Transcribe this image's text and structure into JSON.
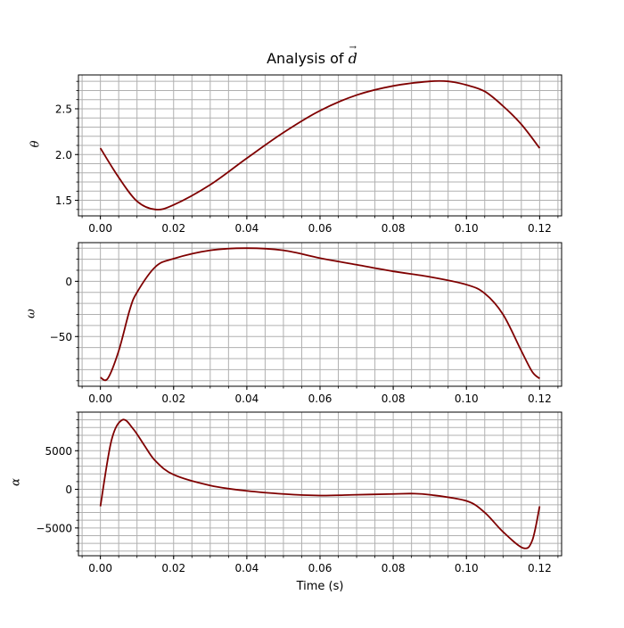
{
  "title": "Analysis of",
  "title_vector": "d",
  "xlabel": "Time (s)",
  "colors": {
    "line": "#7f0000",
    "grid": "#b0b0b0",
    "axes": "#000000"
  },
  "chart_data": [
    {
      "type": "line",
      "title": "Analysis of \\vec{d}",
      "xlabel": "",
      "ylabel": "θ",
      "xlim": [
        -0.006,
        0.126
      ],
      "ylim": [
        1.33,
        2.87
      ],
      "grid": true,
      "minor_grid": true,
      "xticks": [
        0.0,
        0.02,
        0.04,
        0.06,
        0.08,
        0.1,
        0.12
      ],
      "xtick_labels": [
        "0.00",
        "0.02",
        "0.04",
        "0.06",
        "0.08",
        "0.10",
        "0.12"
      ],
      "yticks": [
        1.5,
        2.0,
        2.5
      ],
      "ytick_labels": [
        "1.5",
        "2.0",
        "2.5"
      ],
      "series": [
        {
          "name": "theta",
          "x": [
            0,
            0.005,
            0.01,
            0.015,
            0.02,
            0.03,
            0.04,
            0.05,
            0.06,
            0.07,
            0.08,
            0.09,
            0.095,
            0.1,
            0.105,
            0.11,
            0.115,
            0.12
          ],
          "y": [
            2.07,
            1.75,
            1.49,
            1.4,
            1.45,
            1.67,
            1.96,
            2.24,
            2.48,
            2.65,
            2.75,
            2.8,
            2.8,
            2.76,
            2.69,
            2.53,
            2.33,
            2.07
          ]
        }
      ]
    },
    {
      "type": "line",
      "xlabel": "",
      "ylabel": "ω",
      "xlim": [
        -0.006,
        0.126
      ],
      "ylim": [
        -95,
        35
      ],
      "grid": true,
      "minor_grid": true,
      "xticks": [
        0.0,
        0.02,
        0.04,
        0.06,
        0.08,
        0.1,
        0.12
      ],
      "xtick_labels": [
        "0.00",
        "0.02",
        "0.04",
        "0.06",
        "0.08",
        "0.10",
        "0.12"
      ],
      "yticks": [
        -50,
        0
      ],
      "ytick_labels": [
        "−50",
        "0"
      ],
      "series": [
        {
          "name": "omega",
          "x": [
            0,
            0.002,
            0.005,
            0.008,
            0.01,
            0.015,
            0.02,
            0.03,
            0.04,
            0.05,
            0.06,
            0.07,
            0.08,
            0.09,
            0.1,
            0.105,
            0.11,
            0.115,
            0.118,
            0.12
          ],
          "y": [
            -87,
            -88,
            -63,
            -26,
            -10,
            13,
            20.5,
            28,
            30,
            28,
            21,
            15,
            9,
            4,
            -3,
            -11,
            -30,
            -63,
            -82,
            -88
          ]
        }
      ]
    },
    {
      "type": "line",
      "xlabel": "Time (s)",
      "ylabel": "α",
      "xlim": [
        -0.006,
        0.126
      ],
      "ylim": [
        -8600,
        10000
      ],
      "grid": true,
      "minor_grid": true,
      "xticks": [
        0.0,
        0.02,
        0.04,
        0.06,
        0.08,
        0.1,
        0.12
      ],
      "xtick_labels": [
        "0.00",
        "0.02",
        "0.04",
        "0.06",
        "0.08",
        "0.10",
        "0.12"
      ],
      "yticks": [
        -5000,
        0,
        5000
      ],
      "ytick_labels": [
        "−5000",
        "0",
        "5000"
      ],
      "series": [
        {
          "name": "alpha",
          "x": [
            0,
            0.003,
            0.006,
            0.009,
            0.012,
            0.015,
            0.02,
            0.03,
            0.04,
            0.05,
            0.06,
            0.07,
            0.08,
            0.085,
            0.09,
            0.1,
            0.105,
            0.11,
            0.1155,
            0.118,
            0.12
          ],
          "y": [
            -2200,
            6300,
            9000,
            7800,
            5700,
            3700,
            1900,
            500,
            -200,
            -600,
            -800,
            -700,
            -600,
            -550,
            -700,
            -1500,
            -3000,
            -5500,
            -7600,
            -6600,
            -2200
          ]
        }
      ]
    }
  ],
  "panels": [
    {
      "ylabel": "θ"
    },
    {
      "ylabel": "ω"
    },
    {
      "ylabel": "α"
    }
  ]
}
